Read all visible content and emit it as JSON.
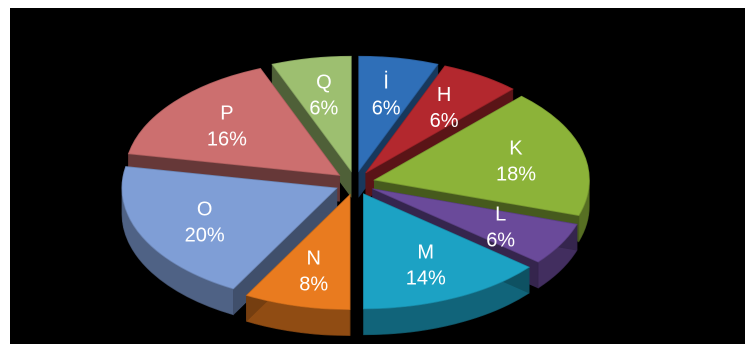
{
  "chart_data": {
    "type": "pie",
    "style": "3d-exploded",
    "slices": [
      {
        "label": "İ",
        "value": 6,
        "pct": "6%",
        "color": "#2f6fb8"
      },
      {
        "label": "H",
        "value": 6,
        "pct": "6%",
        "color": "#b3282e"
      },
      {
        "label": "K",
        "value": 18,
        "pct": "18%",
        "color": "#8cb339"
      },
      {
        "label": "L",
        "value": 6,
        "pct": "6%",
        "color": "#6a4a9a"
      },
      {
        "label": "M",
        "value": 14,
        "pct": "14%",
        "color": "#1ca2c4"
      },
      {
        "label": "N",
        "value": 8,
        "pct": "8%",
        "color": "#e97b1f"
      },
      {
        "label": "O",
        "value": 20,
        "pct": "20%",
        "color": "#7f9ed6"
      },
      {
        "label": "P",
        "value": 16,
        "pct": "16%",
        "color": "#cc6f6f"
      },
      {
        "label": "Q",
        "value": 6,
        "pct": "6%",
        "color": "#9dbf70"
      }
    ]
  }
}
